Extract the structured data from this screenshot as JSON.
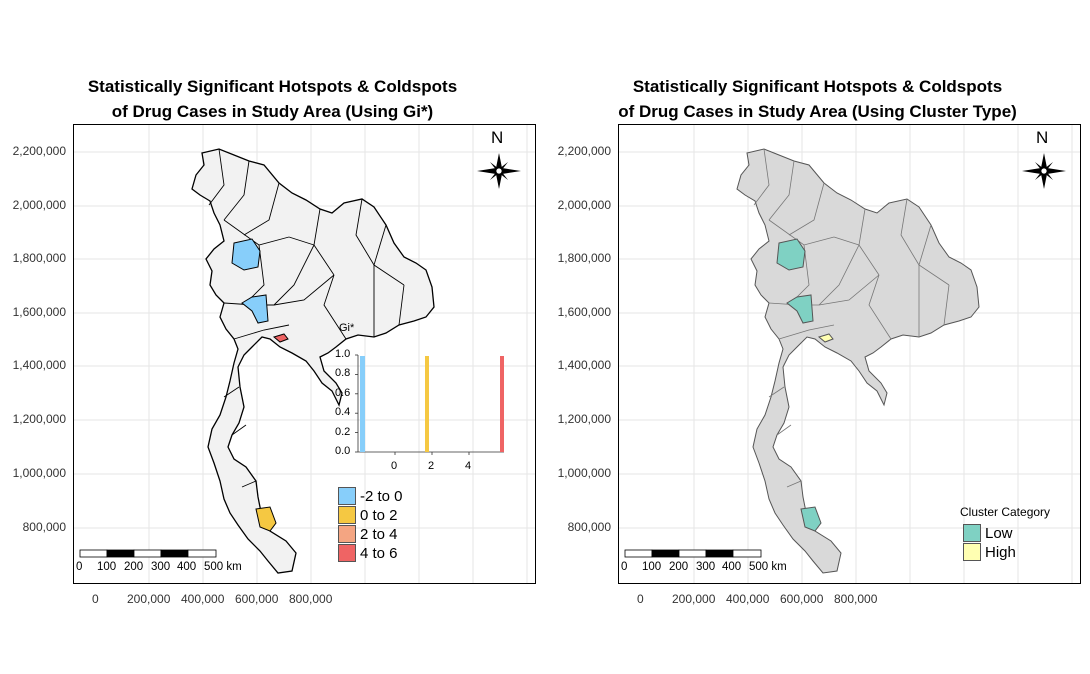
{
  "left": {
    "title_line1": "Statistically Significant Hotspots & Coldspots",
    "title_line2": "of Drug Cases in Study Area (Using Gi*)",
    "y_ticks": [
      "2,200,000",
      "2,000,000",
      "1,800,000",
      "1,600,000",
      "1,400,000",
      "1,200,000",
      "1,000,000",
      "800,000"
    ],
    "x_ticks": [
      "0",
      "200,000",
      "400,000",
      "600,000",
      "800,000"
    ],
    "north": "N",
    "scale_labels": [
      "0",
      "100",
      "200",
      "300",
      "400",
      "500 km"
    ],
    "histogram": {
      "title": "Gi*",
      "y_ticks": [
        "1.0",
        "0.8",
        "0.6",
        "0.4",
        "0.2",
        "0.0"
      ],
      "x_ticks": [
        "0",
        "2",
        "4"
      ]
    },
    "legend": [
      {
        "label": "-2 to 0",
        "color": "#87CEFA"
      },
      {
        "label": "0 to 2",
        "color": "#F5C842"
      },
      {
        "label": "2 to 4",
        "color": "#F4A582"
      },
      {
        "label": "4 to 6",
        "color": "#EF6464"
      }
    ],
    "map_fill": "#f2f2f2"
  },
  "right": {
    "title_line1": "Statistically Significant Hotspots & Coldspots",
    "title_line2": "of Drug Cases in Study Area (Using Cluster Type)",
    "y_ticks": [
      "2,200,000",
      "2,000,000",
      "1,800,000",
      "1,600,000",
      "1,400,000",
      "1,200,000",
      "1,000,000",
      "800,000"
    ],
    "x_ticks": [
      "0",
      "200,000",
      "400,000",
      "600,000",
      "800,000"
    ],
    "north": "N",
    "scale_labels": [
      "0",
      "100",
      "200",
      "300",
      "400",
      "500 km"
    ],
    "legend_title": "Cluster Category",
    "legend": [
      {
        "label": "Low",
        "color": "#7FD1C3"
      },
      {
        "label": "High",
        "color": "#FFFFB2"
      }
    ],
    "map_fill": "#d9d9d9"
  }
}
